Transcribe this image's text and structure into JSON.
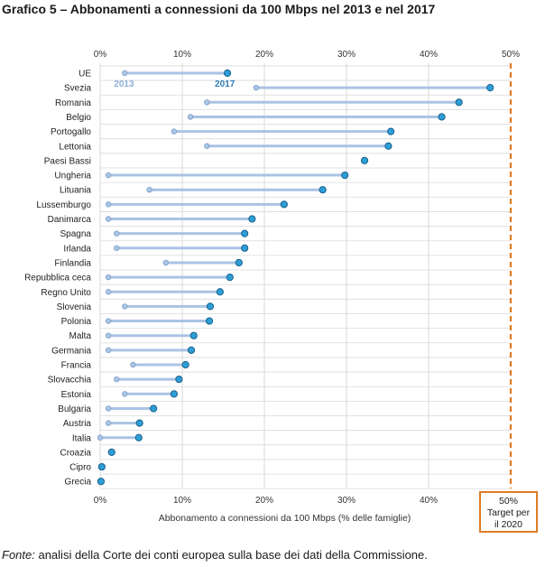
{
  "title": "Grafico 5 – Abbonamenti a connessioni da 100 Mbps nel 2013 e nel 2017",
  "source_prefix": "Fonte:",
  "source_text": " analisi della Corte dei conti europea sulla base dei dati della Commissione.",
  "target_label_pct": "50%",
  "target_label_line1": "Target per",
  "target_label_line2": "il 2020",
  "colors": {
    "line": "#a9c3e3",
    "dot_2013": "#aac6e6",
    "dot_2017": "#2d9fd6",
    "dot_2017_stroke": "#1b5f8c",
    "grid": "#d9d9d9",
    "target": "#e07b22"
  },
  "chart_data": {
    "type": "dumbbell",
    "title": "Grafico 5 – Abbonamenti a connessioni da 100 Mbps nel 2013 e nel 2017",
    "xlabel": "Abbonamento a connessioni da 100 Mbps (% delle famiglie)",
    "xlim": [
      0,
      50
    ],
    "xticks": [
      "0%",
      "10%",
      "20%",
      "30%",
      "40%",
      "50%"
    ],
    "annotations": [
      "2013",
      "2017"
    ],
    "target": 50,
    "grid": true,
    "categories": [
      "UE",
      "Svezia",
      "Romania",
      "Belgio",
      "Portogallo",
      "Lettonia",
      "Paesi Bassi",
      "Ungheria",
      "Lituania",
      "Lussemburgo",
      "Danimarca",
      "Spagna",
      "Irlanda",
      "Finlandia",
      "Repubblica ceca",
      "Regno Unito",
      "Slovenia",
      "Polonia",
      "Malta",
      "Germania",
      "Francia",
      "Slovacchia",
      "Estonia",
      "Bulgaria",
      "Austria",
      "Italia",
      "Croazia",
      "Cipro",
      "Grecia"
    ],
    "series": [
      {
        "name": "2013",
        "values": [
          3,
          19,
          13,
          11,
          9,
          13,
          null,
          1,
          6,
          1,
          1,
          2,
          2,
          8,
          1,
          1,
          3,
          1,
          1,
          1,
          4,
          2,
          3,
          1,
          1,
          0,
          null,
          null,
          null
        ]
      },
      {
        "name": "2017",
        "values": [
          15.5,
          47.5,
          43.7,
          41.6,
          35.4,
          35.1,
          32.2,
          29.8,
          27.1,
          22.4,
          18.5,
          17.6,
          17.6,
          16.9,
          15.8,
          14.6,
          13.4,
          13.3,
          11.4,
          11.1,
          10.4,
          9.6,
          9.0,
          6.5,
          4.8,
          4.7,
          1.4,
          0.2,
          0.1
        ]
      }
    ]
  }
}
